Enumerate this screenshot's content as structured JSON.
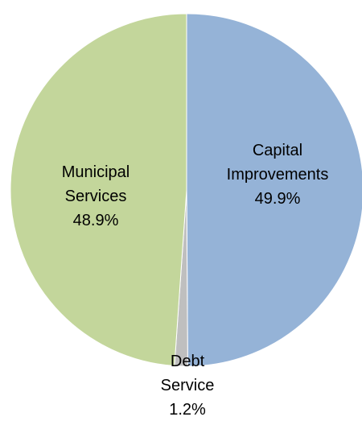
{
  "chart_data": {
    "type": "pie",
    "slices": [
      {
        "label_lines": [
          "Capital",
          "Improvements"
        ],
        "percent_label": "49.9%",
        "value": 49.9,
        "color": "#95B3D7"
      },
      {
        "label_lines": [
          "Debt",
          "Service"
        ],
        "percent_label": "1.2%",
        "value": 1.2,
        "color": "#BFBFBF"
      },
      {
        "label_lines": [
          "Municipal",
          "Services"
        ],
        "percent_label": "48.9%",
        "value": 48.9,
        "color": "#C3D69B"
      }
    ],
    "start": "top",
    "direction": "clockwise"
  }
}
